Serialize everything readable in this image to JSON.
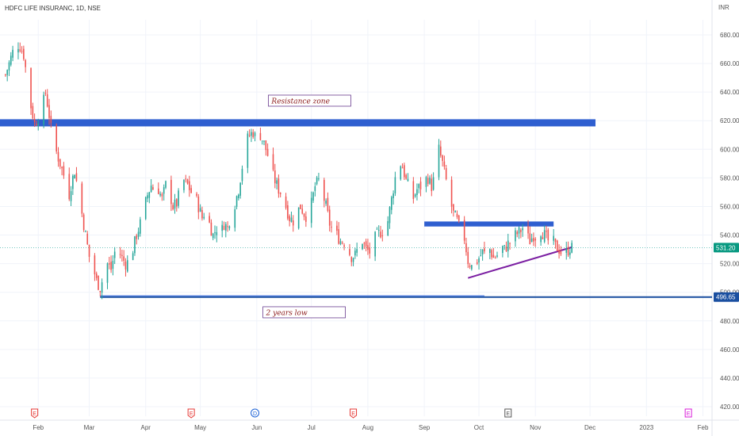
{
  "header": {
    "symbol": "HDFC LIFE INSURANC, 1D, NSE",
    "currency": "INR"
  },
  "colors": {
    "up": "#26a69a",
    "down": "#ef5350",
    "zone": "#2f5fd0",
    "trend": "#7b1fa2",
    "last_price_tag": "#089981",
    "low_tag": "#1a4fa0",
    "ev_earnings": "#e53935",
    "ev_dividend": "#1e63d6",
    "ev_e": "#555555",
    "ev_e2": "#d81bd8"
  },
  "chart_data": {
    "type": "candlestick",
    "title": "HDFC LIFE INSURANC, 1D, NSE",
    "y_unit": "INR",
    "ylim": [
      410,
      690
    ],
    "y_ticks": [
      420,
      440,
      460,
      480,
      500,
      520,
      540,
      560,
      580,
      600,
      620,
      640,
      660,
      680
    ],
    "y_tick_labels": [
      "420.00",
      "440.00",
      "460.00",
      "480.00",
      "500.00",
      "520.00",
      "540.00",
      "560.00",
      "580.00",
      "600.00",
      "620.00",
      "640.00",
      "660.00",
      "680.00"
    ],
    "x_ticks": [
      {
        "label": "Feb",
        "day": 26
      },
      {
        "label": "Mar",
        "day": 54
      },
      {
        "label": "Apr",
        "day": 85
      },
      {
        "label": "May",
        "day": 115
      },
      {
        "label": "Jun",
        "day": 146
      },
      {
        "label": "Jul",
        "day": 176
      },
      {
        "label": "Aug",
        "day": 207
      },
      {
        "label": "Sep",
        "day": 238
      },
      {
        "label": "Oct",
        "day": 268
      },
      {
        "label": "Nov",
        "day": 299
      },
      {
        "label": "Dec",
        "day": 329
      },
      {
        "label": "2023",
        "day": 360
      },
      {
        "label": "Feb",
        "day": 391
      }
    ],
    "x_range_days": [
      5,
      396
    ],
    "ohlc_days": [
      8,
      9,
      10,
      11,
      12,
      13,
      14,
      15,
      16,
      17,
      18,
      19,
      20,
      21,
      22,
      23,
      24,
      25,
      26,
      27,
      28,
      29,
      30,
      31,
      32,
      33,
      34,
      35,
      36,
      37,
      38,
      39,
      40,
      41,
      42,
      43,
      44,
      45,
      46,
      47,
      48,
      49,
      50,
      51,
      52,
      53,
      54,
      55,
      56,
      57,
      58,
      59,
      60,
      61,
      62,
      63,
      64,
      65,
      66,
      67,
      68,
      69,
      70,
      71,
      72,
      73,
      74,
      75,
      76,
      77,
      78,
      79,
      80,
      81,
      82,
      83,
      84,
      85,
      86,
      87,
      88,
      89,
      90,
      91,
      92,
      93,
      94,
      95,
      96,
      97,
      98,
      99,
      100,
      101,
      102,
      103,
      104,
      105,
      106,
      107,
      108,
      109,
      110,
      111,
      112,
      113,
      114,
      115,
      116,
      117,
      118,
      119,
      120,
      121,
      122,
      123,
      124,
      125,
      126,
      127,
      128,
      129,
      130,
      131,
      132,
      133,
      134,
      135,
      136,
      137,
      138,
      139,
      140,
      141,
      142,
      143,
      144,
      145,
      146,
      147,
      148,
      149,
      150,
      151,
      152,
      153,
      154,
      155,
      156,
      157,
      158,
      159,
      160,
      161,
      162,
      163,
      164,
      165,
      166,
      167,
      168,
      169,
      170,
      171,
      172,
      173,
      174,
      175,
      176,
      177,
      178,
      179,
      180,
      181,
      182,
      183,
      184,
      185,
      186,
      187,
      188,
      189,
      190,
      191,
      192,
      193,
      194,
      195,
      196,
      197,
      198,
      199,
      200,
      201,
      202,
      203,
      204,
      205,
      206,
      207,
      208,
      209,
      210,
      211,
      212,
      213,
      214,
      215,
      216,
      217,
      218,
      219,
      220,
      221,
      222,
      223,
      224,
      225,
      226,
      227,
      228,
      229,
      230,
      231,
      232,
      233,
      234,
      235,
      236,
      237,
      238,
      239,
      240,
      241,
      242,
      243,
      244,
      245,
      246,
      247,
      248,
      249,
      250,
      251,
      252,
      253,
      254,
      255,
      256,
      257,
      258,
      259,
      260,
      261,
      262,
      263,
      264,
      265,
      266,
      267,
      268,
      269,
      270,
      271,
      272,
      273,
      274,
      275,
      276,
      277,
      278,
      279,
      280,
      281,
      282,
      283,
      284,
      285,
      286,
      287,
      288,
      289,
      290,
      291,
      292,
      293,
      294,
      295,
      296,
      297,
      298,
      299,
      300,
      301,
      302,
      303,
      304,
      305,
      306,
      307,
      308,
      309,
      310,
      311,
      312,
      313,
      314,
      315,
      316,
      317,
      318,
      319
    ],
    "close_path": [
      [
        8,
        652
      ],
      [
        10,
        660
      ],
      [
        12,
        668
      ],
      [
        14,
        674
      ],
      [
        16,
        672
      ],
      [
        18,
        666
      ],
      [
        20,
        648
      ],
      [
        22,
        630
      ],
      [
        24,
        618
      ],
      [
        26,
        622
      ],
      [
        28,
        628
      ],
      [
        30,
        640
      ],
      [
        32,
        624
      ],
      [
        34,
        605
      ],
      [
        36,
        598
      ],
      [
        38,
        590
      ],
      [
        40,
        582
      ],
      [
        42,
        562
      ],
      [
        44,
        575
      ],
      [
        46,
        585
      ],
      [
        48,
        570
      ],
      [
        50,
        555
      ],
      [
        52,
        540
      ],
      [
        54,
        525
      ],
      [
        56,
        518
      ],
      [
        58,
        508
      ],
      [
        60,
        503
      ],
      [
        62,
        512
      ],
      [
        64,
        520
      ],
      [
        66,
        516
      ],
      [
        68,
        528
      ],
      [
        70,
        530
      ],
      [
        72,
        524
      ],
      [
        74,
        520
      ],
      [
        76,
        522
      ],
      [
        78,
        530
      ],
      [
        80,
        540
      ],
      [
        82,
        548
      ],
      [
        84,
        558
      ],
      [
        86,
        568
      ],
      [
        88,
        575
      ],
      [
        90,
        570
      ],
      [
        92,
        572
      ],
      [
        94,
        565
      ],
      [
        96,
        575
      ],
      [
        98,
        570
      ],
      [
        100,
        560
      ],
      [
        102,
        562
      ],
      [
        104,
        572
      ],
      [
        106,
        578
      ],
      [
        108,
        575
      ],
      [
        110,
        570
      ],
      [
        112,
        568
      ],
      [
        114,
        560
      ],
      [
        116,
        552
      ],
      [
        118,
        558
      ],
      [
        120,
        548
      ],
      [
        122,
        540
      ],
      [
        124,
        545
      ],
      [
        126,
        540
      ],
      [
        128,
        548
      ],
      [
        130,
        545
      ],
      [
        132,
        556
      ],
      [
        134,
        562
      ],
      [
        136,
        572
      ],
      [
        138,
        588
      ],
      [
        140,
        605
      ],
      [
        142,
        610
      ],
      [
        144,
        612
      ],
      [
        146,
        606
      ],
      [
        148,
        610
      ],
      [
        150,
        604
      ],
      [
        152,
        596
      ],
      [
        154,
        585
      ],
      [
        156,
        578
      ],
      [
        158,
        572
      ],
      [
        160,
        568
      ],
      [
        162,
        560
      ],
      [
        164,
        552
      ],
      [
        166,
        550
      ],
      [
        168,
        556
      ],
      [
        170,
        560
      ],
      [
        172,
        555
      ],
      [
        174,
        552
      ],
      [
        176,
        562
      ],
      [
        178,
        574
      ],
      [
        180,
        578
      ],
      [
        182,
        570
      ],
      [
        184,
        560
      ],
      [
        186,
        548
      ],
      [
        188,
        542
      ],
      [
        190,
        540
      ],
      [
        192,
        536
      ],
      [
        194,
        535
      ],
      [
        196,
        530
      ],
      [
        198,
        525
      ],
      [
        200,
        526
      ],
      [
        202,
        532
      ],
      [
        204,
        536
      ],
      [
        206,
        530
      ],
      [
        208,
        528
      ],
      [
        210,
        536
      ],
      [
        212,
        540
      ],
      [
        214,
        542
      ],
      [
        216,
        544
      ],
      [
        218,
        550
      ],
      [
        220,
        565
      ],
      [
        222,
        580
      ],
      [
        224,
        592
      ],
      [
        226,
        588
      ],
      [
        228,
        578
      ],
      [
        230,
        572
      ],
      [
        232,
        566
      ],
      [
        234,
        572
      ],
      [
        236,
        574
      ],
      [
        238,
        578
      ],
      [
        240,
        580
      ],
      [
        242,
        574
      ],
      [
        244,
        582
      ],
      [
        246,
        600
      ],
      [
        248,
        590
      ],
      [
        250,
        578
      ],
      [
        252,
        565
      ],
      [
        254,
        555
      ],
      [
        256,
        550
      ],
      [
        258,
        542
      ],
      [
        260,
        538
      ],
      [
        262,
        522
      ],
      [
        264,
        518
      ],
      [
        266,
        520
      ],
      [
        268,
        524
      ],
      [
        270,
        528
      ],
      [
        272,
        526
      ],
      [
        274,
        530
      ],
      [
        276,
        524
      ],
      [
        278,
        526
      ],
      [
        280,
        532
      ],
      [
        282,
        530
      ],
      [
        284,
        534
      ],
      [
        286,
        536
      ],
      [
        288,
        540
      ],
      [
        290,
        542
      ],
      [
        292,
        545
      ],
      [
        294,
        540
      ],
      [
        296,
        536
      ],
      [
        298,
        540
      ],
      [
        300,
        538
      ],
      [
        302,
        543
      ],
      [
        304,
        540
      ],
      [
        306,
        536
      ],
      [
        308,
        538
      ],
      [
        310,
        532
      ],
      [
        312,
        530
      ],
      [
        314,
        526
      ],
      [
        316,
        528
      ],
      [
        318,
        531
      ]
    ],
    "last_price": 531.2,
    "last_price_label": "531.20",
    "low_level": 496.65,
    "low_level_label": "496.65",
    "resistance_zone": {
      "low": 616,
      "high": 621,
      "from_day": 5,
      "to_day": 332
    },
    "support_zone": {
      "low": 546,
      "high": 549.5,
      "from_day": 238,
      "to_day": 309
    },
    "trendline": {
      "from": [
        262,
        510
      ],
      "to": [
        319,
        531.5
      ]
    },
    "low_line": {
      "from_day": 60,
      "to_day": 396
    },
    "low_line_short_end_day": 271,
    "annotations": [
      {
        "text": "Resistance zone",
        "day": 175,
        "price": 634
      },
      {
        "text": "2 years low",
        "day": 172,
        "price": 486
      }
    ],
    "events": [
      {
        "label": "E",
        "day": 24,
        "kind": "ev_earnings"
      },
      {
        "label": "E",
        "day": 110,
        "kind": "ev_earnings"
      },
      {
        "label": "D",
        "day": 145,
        "kind": "ev_dividend"
      },
      {
        "label": "E",
        "day": 199,
        "kind": "ev_earnings"
      },
      {
        "label": "E",
        "day": 284,
        "kind": "ev_e"
      },
      {
        "label": "E",
        "day": 383,
        "kind": "ev_e2"
      }
    ]
  }
}
